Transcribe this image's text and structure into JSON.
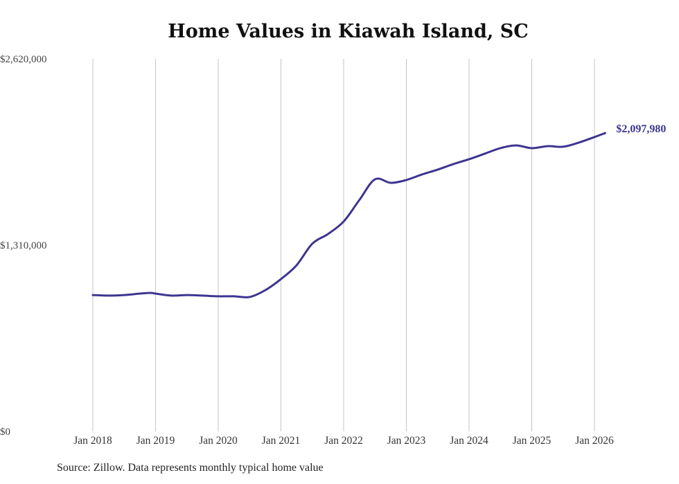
{
  "chart_data": {
    "type": "line",
    "title": "Home Values in Kiawah Island, SC",
    "xlabel": "",
    "ylabel": "",
    "ylim": [
      0,
      2620000
    ],
    "yticks": [
      0,
      1310000,
      2620000
    ],
    "ytick_labels": [
      "$0",
      "$1,310,000",
      "$2,620,000"
    ],
    "xticks": [
      2018,
      2019,
      2020,
      2021,
      2022,
      2023,
      2024,
      2025,
      2026
    ],
    "xtick_labels": [
      "Jan 2018",
      "Jan 2019",
      "Jan 2020",
      "Jan 2021",
      "Jan 2022",
      "Jan 2023",
      "Jan 2024",
      "Jan 2025",
      "Jan 2026"
    ],
    "grid": "vertical",
    "series": [
      {
        "name": "Typical home value",
        "color": "#3d3590",
        "x": [
          2018.0,
          2018.25,
          2018.5,
          2018.75,
          2018.92,
          2019.0,
          2019.25,
          2019.5,
          2019.75,
          2020.0,
          2020.25,
          2020.5,
          2020.75,
          2021.0,
          2021.25,
          2021.5,
          2021.75,
          2022.0,
          2022.25,
          2022.5,
          2022.75,
          2023.0,
          2023.25,
          2023.5,
          2023.75,
          2024.0,
          2024.25,
          2024.5,
          2024.75,
          2025.0,
          2025.25,
          2025.5,
          2025.75,
          2026.0,
          2026.17
        ],
        "values": [
          959000,
          955000,
          959000,
          969000,
          974000,
          969000,
          955000,
          959000,
          955000,
          950000,
          950000,
          945000,
          993000,
          1071000,
          1169000,
          1320000,
          1388000,
          1476000,
          1627000,
          1773000,
          1748000,
          1768000,
          1807000,
          1841000,
          1880000,
          1914000,
          1953000,
          1992000,
          2011000,
          1992000,
          2006000,
          2002000,
          2031000,
          2070000,
          2097980
        ]
      }
    ],
    "end_label": "$2,097,980"
  },
  "source": "Source: Zillow. Data represents monthly typical home value"
}
